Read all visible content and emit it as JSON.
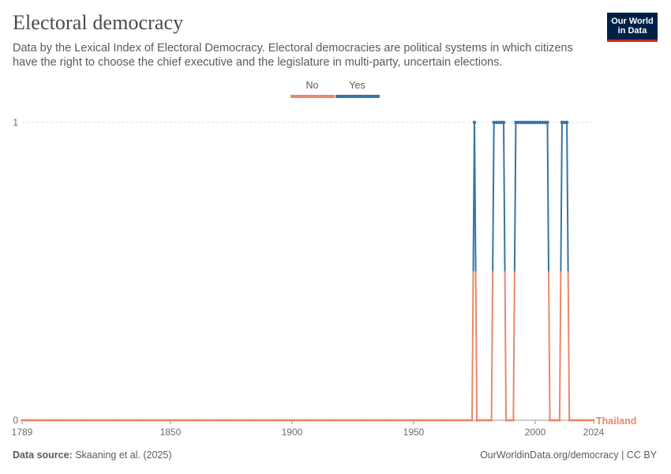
{
  "header": {
    "title": "Electoral democracy",
    "subtitle": "Data by the Lexical Index of Electoral Democracy. Electoral democracies are political systems in which citizens have the right to choose the chief executive and the legislature in multi-party, uncertain elections."
  },
  "logo": {
    "line1": "Our World",
    "line2": "in Data"
  },
  "footer": {
    "source_label": "Data source:",
    "source_text": "Skaaning et al. (2025)",
    "right_text": "OurWorldinData.org/democracy | CC BY"
  },
  "colors": {
    "no": "#e8896a",
    "yes": "#3674a8",
    "grid": "#dddddd",
    "axis": "#6b6b6b"
  },
  "chart_data": {
    "type": "line",
    "title": "Electoral democracy",
    "xlabel": "",
    "ylabel": "",
    "xlim": [
      1789,
      2024
    ],
    "ylim": [
      0,
      1
    ],
    "x_ticks": [
      1789,
      1850,
      1900,
      1950,
      2000,
      2024
    ],
    "y_ticks": [
      0,
      1
    ],
    "legend": {
      "position": "top-center",
      "entries": [
        {
          "label": "No",
          "color": "#e8896a"
        },
        {
          "label": "Yes",
          "color": "#3674a8"
        }
      ]
    },
    "series": [
      {
        "name": "Thailand",
        "start_year": 1789,
        "end_year": 2024,
        "yes_years": [
          1975,
          1983,
          1984,
          1985,
          1986,
          1987,
          1992,
          1993,
          1994,
          1995,
          1996,
          1997,
          1998,
          1999,
          2000,
          2001,
          2002,
          2003,
          2004,
          2005,
          2011,
          2012,
          2013
        ]
      }
    ]
  }
}
